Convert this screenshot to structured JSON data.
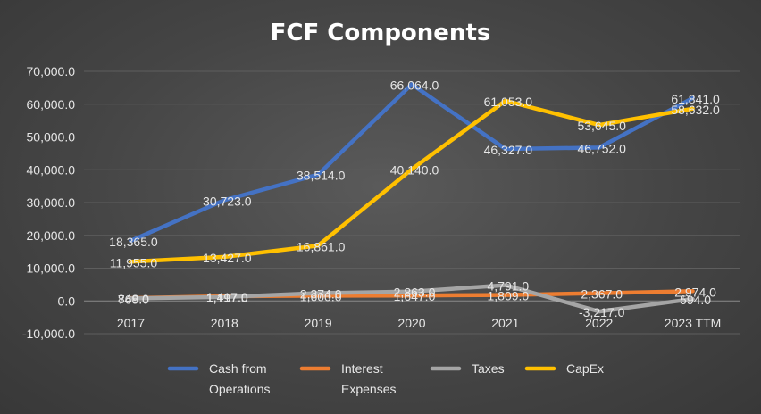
{
  "chart_data": {
    "type": "line",
    "title": "FCF Components",
    "xlabel": "",
    "ylabel": "",
    "categories": [
      "2017",
      "2018",
      "2019",
      "2020",
      "2021",
      "2022",
      "2023 TTM"
    ],
    "ylim": [
      -10000,
      70000
    ],
    "yticks": [
      70000,
      60000,
      50000,
      40000,
      30000,
      20000,
      10000,
      0,
      -10000
    ],
    "ytick_labels": [
      "70,000.0",
      "60,000.0",
      "50,000.0",
      "40,000.0",
      "30,000.0",
      "20,000.0",
      "10,000.0",
      "0.0",
      "-10,000.0"
    ],
    "grid": true,
    "legend_position": "bottom",
    "series": [
      {
        "name": "Cash from Operations",
        "legend_lines": [
          "Cash from",
          "Operations"
        ],
        "color": "#4472C4",
        "values": [
          18365,
          30723,
          38514,
          66064,
          46327,
          46752,
          61841
        ],
        "labels": [
          "18,365.0",
          "30,723.0",
          "38,514.0",
          "66,064.0",
          "46,327.0",
          "46,752.0",
          "61,841.0"
        ]
      },
      {
        "name": "Interest Expenses",
        "legend_lines": [
          "Interest",
          "Expenses"
        ],
        "color": "#ED7D31",
        "values": [
          848,
          1417,
          1600,
          1647,
          1809,
          2367,
          2974
        ],
        "labels": [
          "848.0",
          "1,417.0",
          "1,600.0",
          "1,647.0",
          "1,809.0",
          "2,367.0",
          "2,974.0"
        ]
      },
      {
        "name": "Taxes",
        "legend_lines": [
          "Taxes"
        ],
        "color": "#A5A5A5",
        "values": [
          769,
          1197,
          2374,
          2863,
          4791,
          -3217,
          594
        ],
        "labels": [
          "769.0",
          "1,197.0",
          "2,374.0",
          "2,863.0",
          "4,791.0",
          "-3,217.0",
          "594.0"
        ]
      },
      {
        "name": "CapEx",
        "legend_lines": [
          "CapEx"
        ],
        "color": "#FFC000",
        "values": [
          11955,
          13427,
          16861,
          40140,
          61053,
          53645,
          58632
        ],
        "labels": [
          "11,955.0",
          "13,427.0",
          "16,861.0",
          "40,140.0",
          "61,053.0",
          "53,645.0",
          "58,632.0"
        ]
      }
    ]
  }
}
